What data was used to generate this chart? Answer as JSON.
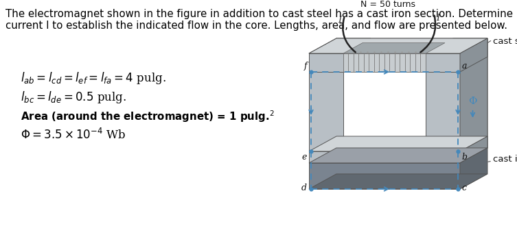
{
  "bg_color": "#ffffff",
  "title_line1": "The electromagnet shown in the figure in addition to cast steel has a cast iron section. Determine",
  "title_line2": "current I to establish the indicated flow in the core. Lengths, area, and flow are presented below.",
  "title_fontsize": 10.8,
  "eq1": "$l_{ab} = l_{cd} = l_{ef} = l_{fa} = 4$ pulg.",
  "eq2": "$l_{bc} = l_{de} = 0.5$ pulg.",
  "eq3": "Area (around the electromagnet) = 1 pulg.$^{2}$",
  "eq4": "$\\Phi = 3.5 \\times 10^{-4}$ Wb",
  "eq_fontsize": 12,
  "eq3_fontsize": 10.8,
  "label_N": "N = 50 turns",
  "label_cast_steel": "cast steel",
  "label_cast_iron": "cast iron",
  "dashed_color": "#4488bb",
  "steel_face": "#b8bfc5",
  "steel_top": "#d0d5d8",
  "steel_side": "#8a9298",
  "coil_face": "#c8cdd0",
  "coil_top": "#a0a8ac",
  "coil_line": "#888890",
  "iron_face": "#7a8490",
  "iron_top": "#9aa0a8",
  "iron_side": "#606870"
}
